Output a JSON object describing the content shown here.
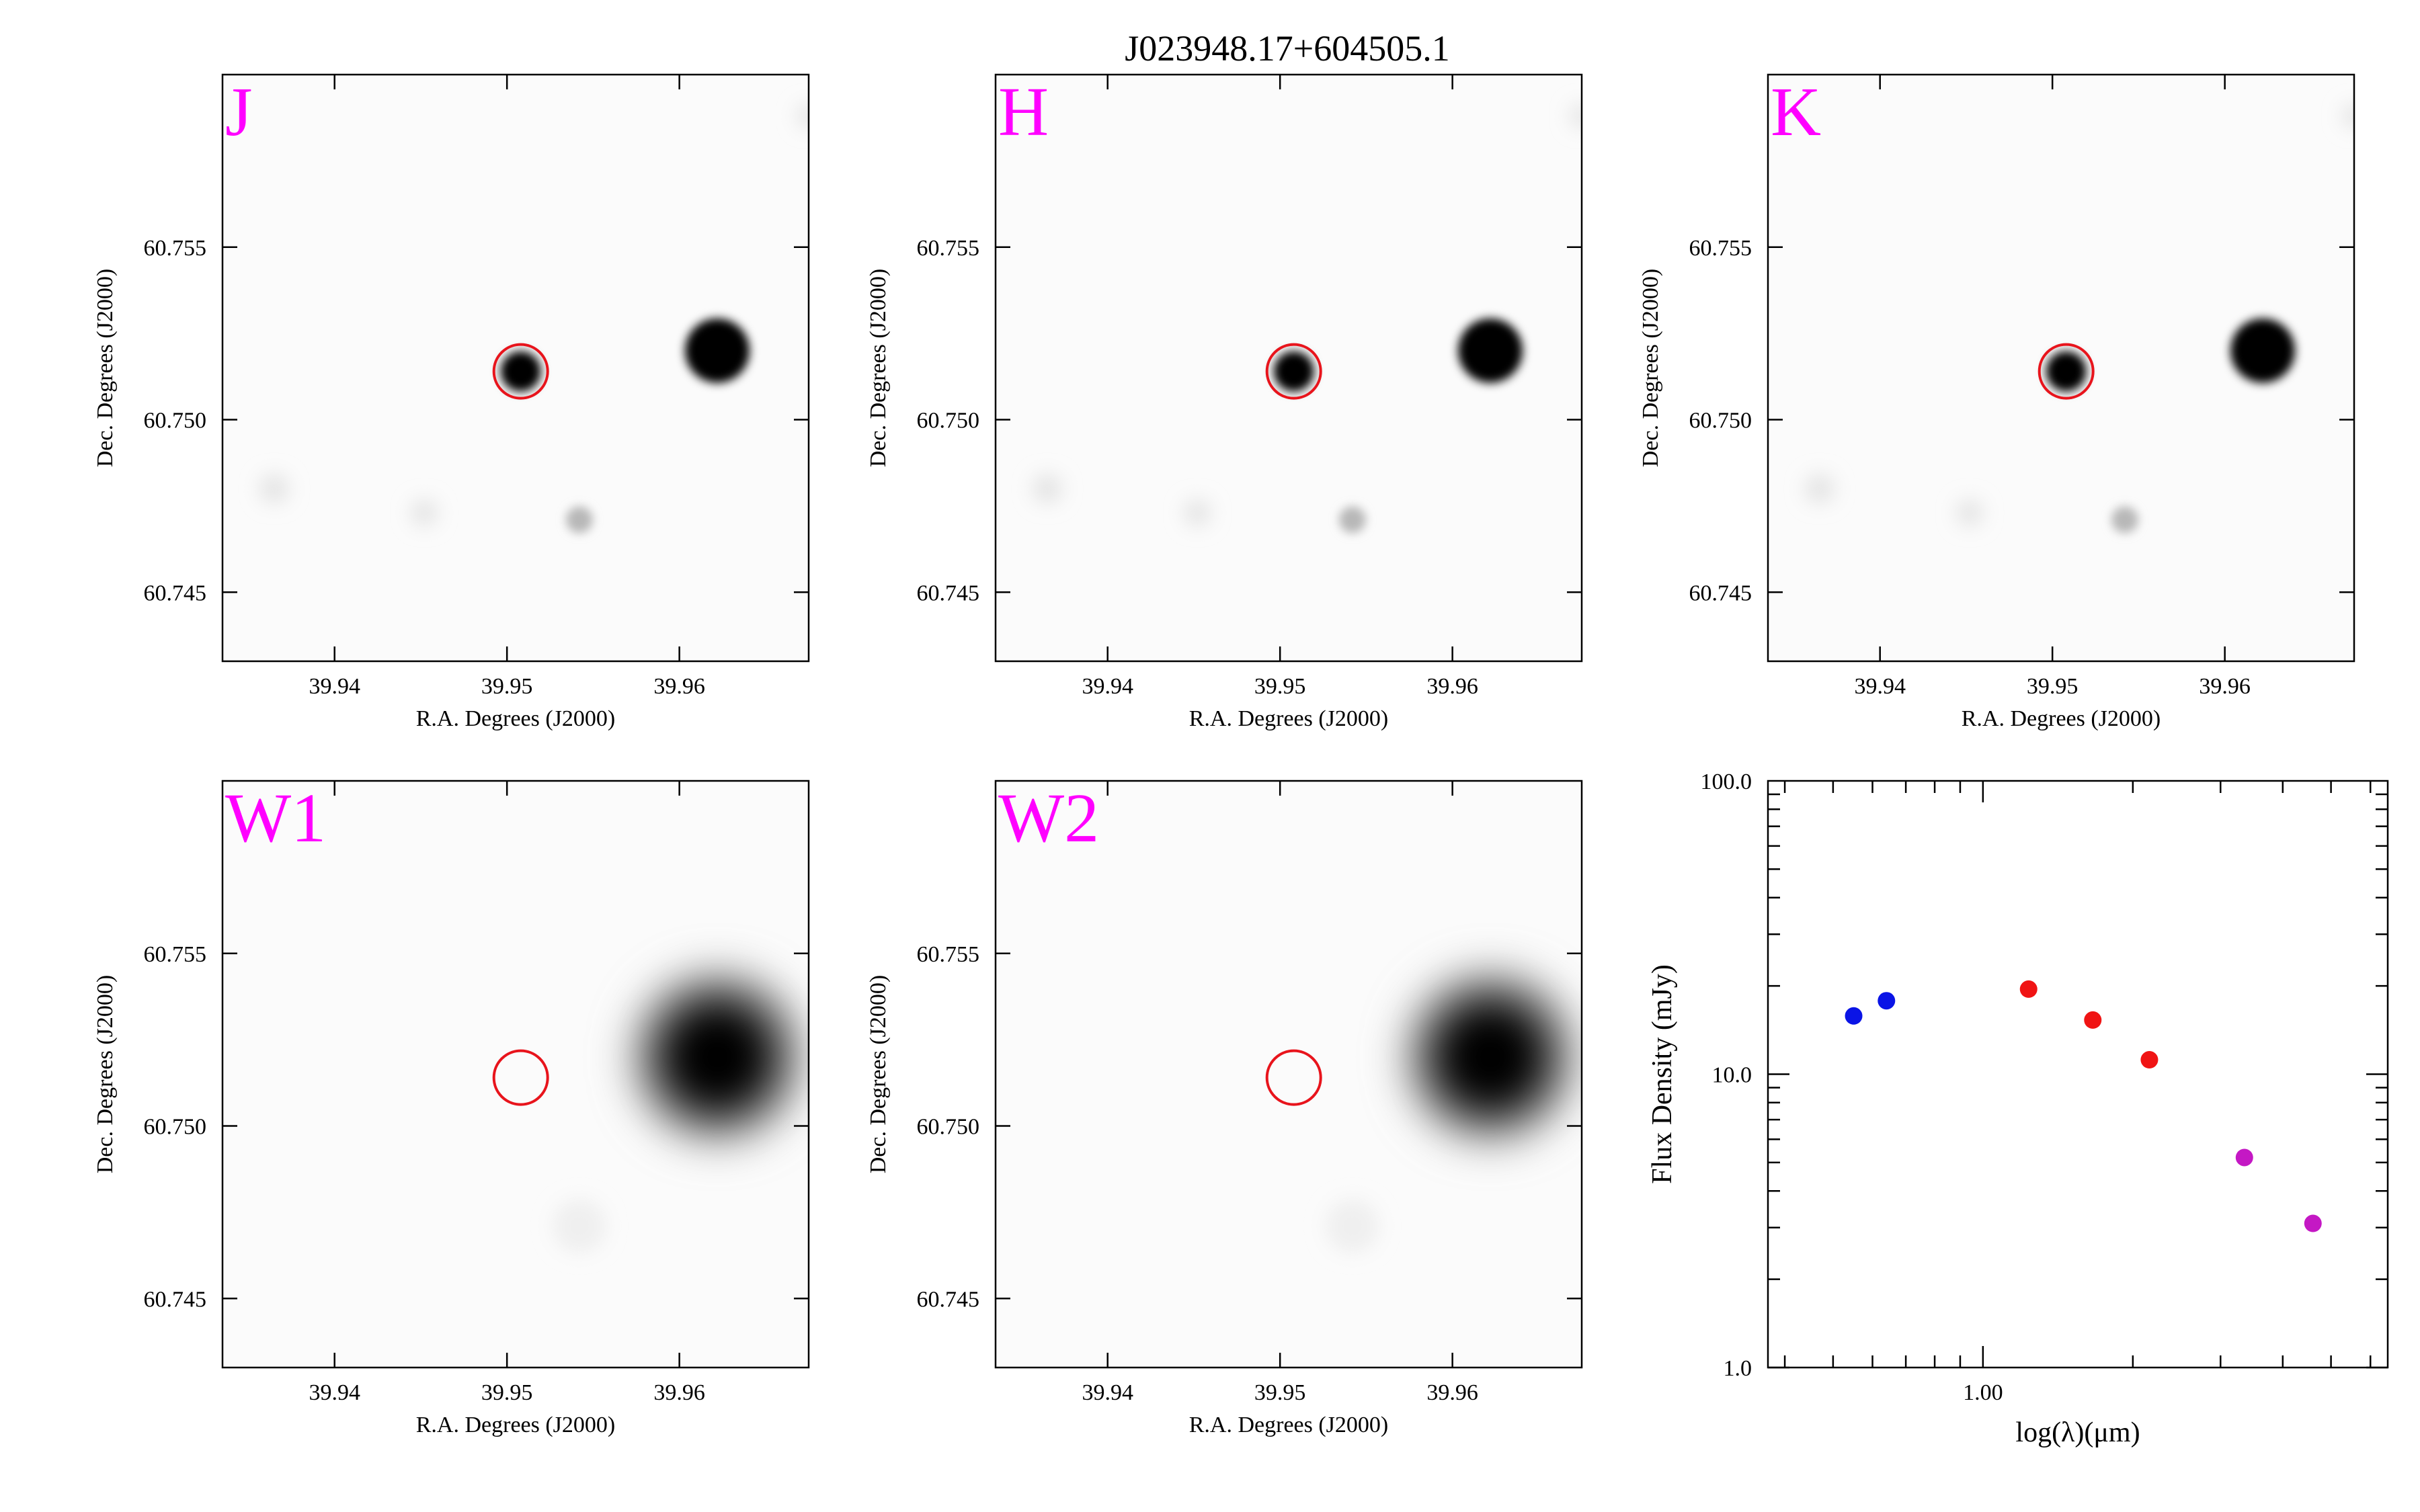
{
  "title": "J023948.17+604505.1",
  "colors": {
    "band_label": "#ff00ff",
    "aperture": "#e8141c",
    "frame": "#000000"
  },
  "image_axes": {
    "xlabel": "R.A. Degrees (J2000)",
    "ylabel": "Dec. Degrees (J2000)",
    "x_ticks": [
      "39.94",
      "39.95",
      "39.96"
    ],
    "y_ticks": [
      "60.755",
      "60.750",
      "60.745"
    ]
  },
  "panels": [
    {
      "band": "J",
      "aperture_has_source": true
    },
    {
      "band": "H",
      "aperture_has_source": true
    },
    {
      "band": "K",
      "aperture_has_source": true
    },
    {
      "band": "W1",
      "aperture_has_source": false
    },
    {
      "band": "W2",
      "aperture_has_source": false
    }
  ],
  "chart_data": [
    {
      "type": "image",
      "panels": [
        "J",
        "H",
        "K",
        "W1",
        "W2"
      ],
      "xlabel": "R.A. Degrees (J2000)",
      "ylabel": "Dec. Degrees (J2000)",
      "xlim": [
        39.9335,
        39.9675
      ],
      "ylim": [
        60.743,
        60.76
      ],
      "x_ticks": [
        39.94,
        39.95,
        39.96
      ],
      "y_ticks": [
        60.755,
        60.75,
        60.745
      ],
      "aperture": {
        "ra": 39.9508,
        "dec": 60.7514,
        "color": "#e8141c"
      },
      "sources": [
        {
          "ra": 39.9508,
          "dec": 60.7514,
          "note": "target"
        },
        {
          "ra": 39.9622,
          "dec": 60.752
        },
        {
          "ra": 39.9542,
          "dec": 60.7471
        }
      ]
    },
    {
      "type": "scatter",
      "xlabel": "log(λ)(μm)",
      "ylabel": "Flux Density (mJy)",
      "xscale": "log",
      "yscale": "log",
      "xlim": [
        0.37,
        6.5
      ],
      "ylim": [
        1.0,
        100.0
      ],
      "x_tick_labels": [
        "1.00"
      ],
      "y_tick_labels": [
        "100.0",
        "10.0",
        "1.0"
      ],
      "grid": false,
      "series": [
        {
          "color": "#0a14e6",
          "x": [
            0.55,
            0.64
          ],
          "y": [
            15.8,
            17.8
          ]
        },
        {
          "color": "#f01414",
          "x": [
            1.235,
            1.662,
            2.159
          ],
          "y": [
            19.5,
            15.3,
            11.2
          ]
        },
        {
          "color": "#c418c4",
          "x": [
            3.35,
            4.6
          ],
          "y": [
            5.2,
            3.1
          ]
        }
      ]
    }
  ]
}
